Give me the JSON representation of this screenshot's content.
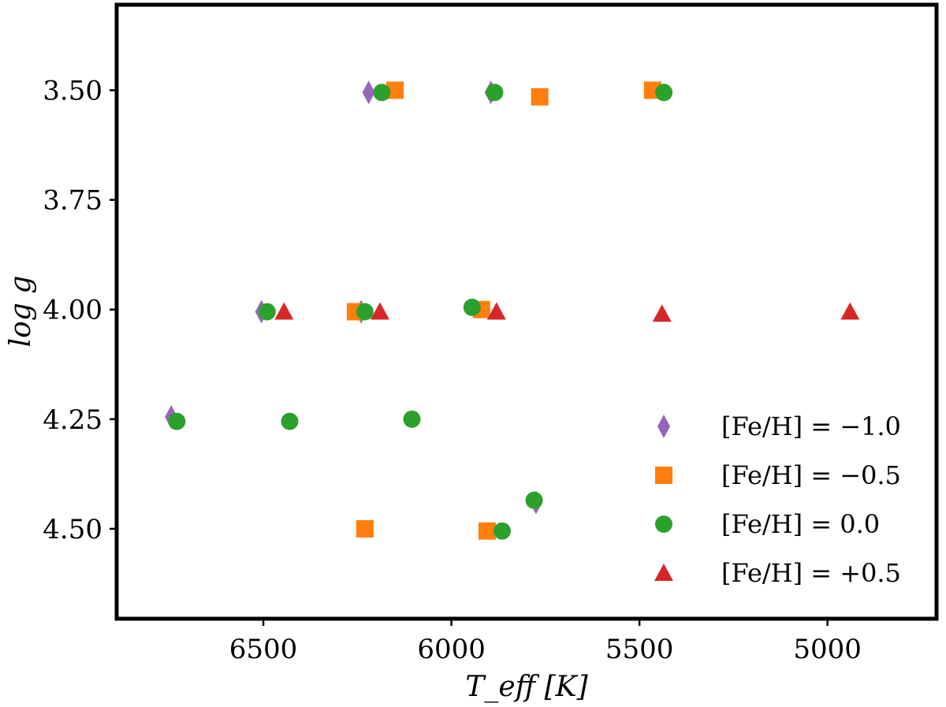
{
  "chart_data": {
    "type": "scatter",
    "title": "",
    "xlabel": "T_eff [K]",
    "ylabel": "log g",
    "xlim": [
      6890,
      4710
    ],
    "ylim": [
      4.705,
      3.305
    ],
    "x_inverted": true,
    "y_inverted": true,
    "xticks": [
      6500,
      6000,
      5500,
      5000
    ],
    "xtick_labels": [
      "6500",
      "6000",
      "5500",
      "5000"
    ],
    "yticks": [
      3.5,
      3.75,
      4.0,
      4.25,
      4.5
    ],
    "ytick_labels": [
      "3.50",
      "3.75",
      "4.00",
      "4.25",
      "4.50"
    ],
    "grid": false,
    "legend_position": "bottom-right",
    "series": [
      {
        "name": "[Fe/H] = −1.0",
        "marker": "diamond",
        "color": "#9467bd",
        "points": [
          {
            "x": 6220,
            "y": 3.505
          },
          {
            "x": 5895,
            "y": 3.505
          },
          {
            "x": 6505,
            "y": 4.005
          },
          {
            "x": 6240,
            "y": 4.005
          },
          {
            "x": 6745,
            "y": 4.245
          },
          {
            "x": 5775,
            "y": 4.44
          }
        ]
      },
      {
        "name": "[Fe/H] = −0.5",
        "marker": "square",
        "color": "#ff7f0e",
        "points": [
          {
            "x": 6150,
            "y": 3.5
          },
          {
            "x": 5765,
            "y": 3.515
          },
          {
            "x": 5465,
            "y": 3.5
          },
          {
            "x": 6255,
            "y": 4.005
          },
          {
            "x": 5920,
            "y": 4.0
          },
          {
            "x": 6230,
            "y": 4.5
          },
          {
            "x": 5905,
            "y": 4.505
          }
        ]
      },
      {
        "name": "[Fe/H] = 0.0",
        "marker": "circle",
        "color": "#2ca02c",
        "points": [
          {
            "x": 6185,
            "y": 3.505
          },
          {
            "x": 5885,
            "y": 3.505
          },
          {
            "x": 5435,
            "y": 3.505
          },
          {
            "x": 6490,
            "y": 4.005
          },
          {
            "x": 6230,
            "y": 4.005
          },
          {
            "x": 5945,
            "y": 3.995
          },
          {
            "x": 6730,
            "y": 4.255
          },
          {
            "x": 6430,
            "y": 4.255
          },
          {
            "x": 6105,
            "y": 4.25
          },
          {
            "x": 5780,
            "y": 4.435
          },
          {
            "x": 5865,
            "y": 4.505
          }
        ]
      },
      {
        "name": "[Fe/H] = +0.5",
        "marker": "triangle",
        "color": "#d62728",
        "points": [
          {
            "x": 6445,
            "y": 4.005
          },
          {
            "x": 6190,
            "y": 4.005
          },
          {
            "x": 5880,
            "y": 4.005
          },
          {
            "x": 5440,
            "y": 4.01
          },
          {
            "x": 4940,
            "y": 4.005
          }
        ]
      }
    ]
  }
}
